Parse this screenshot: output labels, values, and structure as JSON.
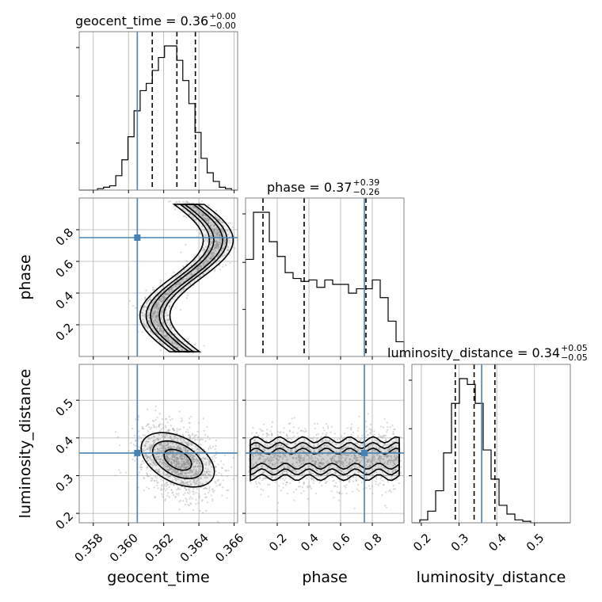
{
  "chart_data": {
    "type": "corner",
    "colors": {
      "truth": "#4682b4",
      "hist": "#000000",
      "grid": "#b0b0b0",
      "frame": "#808080",
      "cloud": "#aaaaaa"
    },
    "parameters": [
      {
        "key": "geocent_time",
        "label": "geocent_time",
        "range": [
          0.3572,
          0.3662
        ],
        "ticks": [
          0.358,
          0.36,
          0.362,
          0.364,
          0.366
        ],
        "tick_labels": [
          "0.358",
          "0.360",
          "0.362",
          "0.364",
          "0.366"
        ],
        "truth": 0.3605,
        "quantiles": [
          0.36135,
          0.36275,
          0.3638
        ]
      },
      {
        "key": "phase",
        "label": "phase",
        "range": [
          0.0,
          1.0
        ],
        "ticks": [
          0.2,
          0.4,
          0.6,
          0.8
        ],
        "tick_labels": [
          "0.2",
          "0.4",
          "0.6",
          "0.8"
        ],
        "truth": 0.75,
        "quantiles": [
          0.11,
          0.37,
          0.76
        ]
      },
      {
        "key": "luminosity_distance",
        "label": "luminosity_distance",
        "range": [
          0.175,
          0.595
        ],
        "ticks": [
          0.2,
          0.3,
          0.4,
          0.5
        ],
        "tick_labels": [
          "0.2",
          "0.3",
          "0.4",
          "0.5"
        ],
        "truth": 0.36,
        "quantiles": [
          0.29,
          0.34,
          0.395
        ]
      }
    ],
    "titles": [
      {
        "param": "geocent_time",
        "text": "geocent_time = 0.36",
        "plus": "+0.00",
        "minus": "−0.00"
      },
      {
        "param": "phase",
        "text": "phase = 0.37",
        "plus": "+0.39",
        "minus": "−0.26"
      },
      {
        "param": "luminosity_distance",
        "text": "luminosity_distance = 0.34",
        "plus": "+0.05",
        "minus": "−0.05"
      }
    ],
    "histograms": {
      "geocent_time": {
        "edges_range": [
          0.3572,
          0.3662
        ],
        "counts": [
          0,
          0,
          0,
          1,
          2,
          3,
          10,
          21,
          37,
          55,
          69,
          74,
          83,
          92,
          100,
          100,
          90,
          76,
          60,
          40,
          22,
          12,
          6,
          2,
          1,
          0
        ]
      },
      "phase": {
        "edges_range": [
          0.0,
          1.0
        ],
        "counts": [
          66,
          98,
          98,
          78,
          68,
          57,
          53,
          51,
          52,
          47,
          52,
          49,
          49,
          43,
          46,
          46,
          52,
          40,
          24,
          10
        ]
      },
      "luminosity_distance": {
        "edges_range": [
          0.175,
          0.595
        ],
        "counts": [
          0,
          2,
          8,
          22,
          48,
          82,
          99,
          95,
          82,
          50,
          30,
          12,
          6,
          2,
          1,
          0,
          0,
          0,
          0,
          0
        ]
      }
    }
  }
}
